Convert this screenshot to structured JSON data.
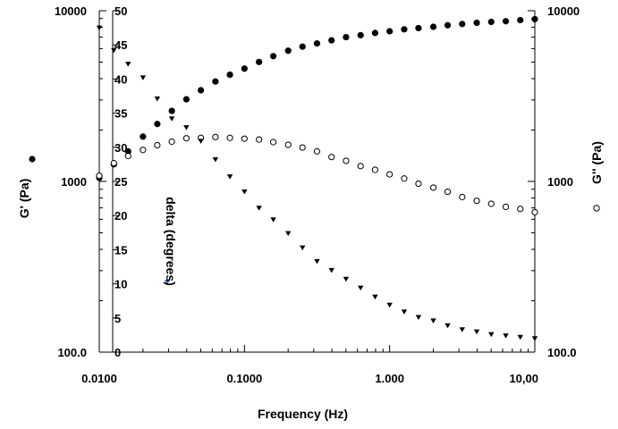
{
  "chart_data": {
    "type": "scatter",
    "xlabel": "Frequency (Hz)",
    "xscale": "log",
    "xlim": [
      0.01,
      10
    ],
    "x_ticks": [
      {
        "value": 0.01,
        "label": "0.0100"
      },
      {
        "value": 0.1,
        "label": "0.1000"
      },
      {
        "value": 1,
        "label": "1.000"
      },
      {
        "value": 10,
        "label": "10,00"
      }
    ],
    "left_axis": {
      "label": "G' (Pa)",
      "scale": "log",
      "lim": [
        100,
        10000
      ],
      "ticks": [
        {
          "value": 100,
          "label": "100.0"
        },
        {
          "value": 1000,
          "label": "1000"
        },
        {
          "value": 10000,
          "label": "10000"
        }
      ]
    },
    "right_axis": {
      "label": "G'' (Pa)",
      "scale": "log",
      "lim": [
        100,
        10000
      ],
      "ticks": [
        {
          "value": 100,
          "label": "100.0"
        },
        {
          "value": 1000,
          "label": "1000"
        },
        {
          "value": 10000,
          "label": "10000"
        }
      ]
    },
    "inner_axis": {
      "label": "delta (degrees)",
      "lim": [
        0,
        50
      ],
      "ticks": [
        {
          "value": 0,
          "label": "0"
        },
        {
          "value": 5,
          "label": "5"
        },
        {
          "value": 10,
          "label": "10"
        },
        {
          "value": 15,
          "label": "15"
        },
        {
          "value": 20,
          "label": "20"
        },
        {
          "value": 25,
          "label": "25"
        },
        {
          "value": 30,
          "label": "30"
        },
        {
          "value": 35,
          "label": "35"
        },
        {
          "value": 40,
          "label": "40"
        },
        {
          "value": 45,
          "label": "45"
        },
        {
          "value": 50,
          "label": "50"
        }
      ]
    },
    "series": [
      {
        "marker": "filled-circle",
        "axis": "left",
        "x": [
          0.01,
          0.0126,
          0.0158,
          0.02,
          0.0251,
          0.0316,
          0.0398,
          0.0501,
          0.0631,
          0.0794,
          0.1,
          0.126,
          0.158,
          0.2,
          0.251,
          0.316,
          0.398,
          0.501,
          0.631,
          0.794,
          1.0,
          1.26,
          1.58,
          2.0,
          2.51,
          3.16,
          3.98,
          5.01,
          6.31,
          7.94,
          10.0
        ],
        "y": [
          1050,
          1260,
          1500,
          1830,
          2170,
          2590,
          3030,
          3420,
          3850,
          4220,
          4580,
          5010,
          5420,
          5830,
          6160,
          6430,
          6710,
          7000,
          7190,
          7410,
          7580,
          7780,
          7910,
          8050,
          8220,
          8360,
          8500,
          8600,
          8680,
          8810,
          8920
        ]
      },
      {
        "marker": "open-circle",
        "axis": "right",
        "x": [
          0.01,
          0.0126,
          0.0158,
          0.02,
          0.0251,
          0.0316,
          0.0398,
          0.0501,
          0.0631,
          0.0794,
          0.1,
          0.126,
          0.158,
          0.2,
          0.251,
          0.316,
          0.398,
          0.501,
          0.631,
          0.794,
          1.0,
          1.26,
          1.58,
          2.0,
          2.51,
          3.16,
          3.98,
          5.01,
          6.31,
          7.94,
          10.0
        ],
        "y": [
          1080,
          1280,
          1410,
          1530,
          1630,
          1710,
          1790,
          1800,
          1820,
          1800,
          1780,
          1760,
          1700,
          1640,
          1580,
          1500,
          1390,
          1320,
          1230,
          1170,
          1100,
          1040,
          970,
          920,
          870,
          810,
          770,
          740,
          710,
          690,
          660
        ]
      },
      {
        "marker": "filled-triangle-down",
        "axis": "inner",
        "x": [
          0.01,
          0.0126,
          0.0158,
          0.02,
          0.0251,
          0.0316,
          0.0398,
          0.0501,
          0.0631,
          0.0794,
          0.1,
          0.126,
          0.158,
          0.2,
          0.251,
          0.316,
          0.398,
          0.501,
          0.631,
          0.794,
          1.0,
          1.26,
          1.58,
          2.0,
          2.51,
          3.16,
          3.98,
          5.01,
          6.31,
          7.94,
          10.0
        ],
        "y": [
          47.5,
          44.2,
          42.2,
          40.2,
          37.1,
          34.2,
          32.9,
          30.9,
          28.2,
          25.7,
          23.5,
          21.1,
          19.4,
          17.4,
          15.3,
          13.3,
          12.0,
          10.7,
          9.4,
          8.1,
          6.9,
          5.9,
          5.1,
          4.6,
          3.9,
          3.3,
          3.0,
          2.6,
          2.4,
          2.2,
          2.0
        ]
      }
    ]
  }
}
